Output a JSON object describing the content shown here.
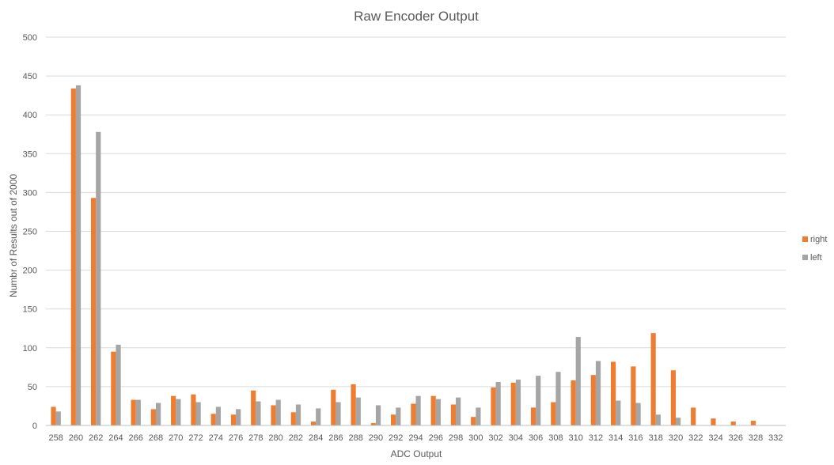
{
  "chart_data": {
    "type": "bar",
    "title": "Raw Encoder Output",
    "xlabel": "ADC Output",
    "ylabel": "Numbr of Results out of 2000",
    "ylim": [
      0,
      500
    ],
    "yticks": [
      0,
      50,
      100,
      150,
      200,
      250,
      300,
      350,
      400,
      450,
      500
    ],
    "grid": true,
    "legend_position": "right",
    "categories": [
      "258",
      "260",
      "262",
      "264",
      "266",
      "268",
      "270",
      "272",
      "274",
      "276",
      "278",
      "280",
      "282",
      "284",
      "286",
      "288",
      "290",
      "292",
      "294",
      "296",
      "298",
      "300",
      "302",
      "304",
      "306",
      "308",
      "310",
      "312",
      "314",
      "316",
      "318",
      "320",
      "322",
      "324",
      "326",
      "328",
      "332"
    ],
    "series": [
      {
        "name": "right",
        "color": "#ED7D31",
        "values": [
          24,
          434,
          293,
          95,
          33,
          21,
          38,
          40,
          15,
          14,
          45,
          26,
          17,
          5,
          46,
          53,
          3,
          14,
          28,
          38,
          27,
          11,
          49,
          55,
          23,
          30,
          58,
          65,
          82,
          76,
          119,
          71,
          23,
          9,
          5,
          6,
          0
        ]
      },
      {
        "name": "left",
        "color": "#A5A5A5",
        "values": [
          18,
          438,
          378,
          104,
          33,
          29,
          34,
          30,
          24,
          21,
          31,
          33,
          27,
          22,
          30,
          36,
          26,
          23,
          38,
          34,
          36,
          23,
          56,
          59,
          64,
          69,
          114,
          83,
          32,
          29,
          14,
          10,
          0,
          0,
          0,
          0,
          0
        ]
      }
    ]
  }
}
